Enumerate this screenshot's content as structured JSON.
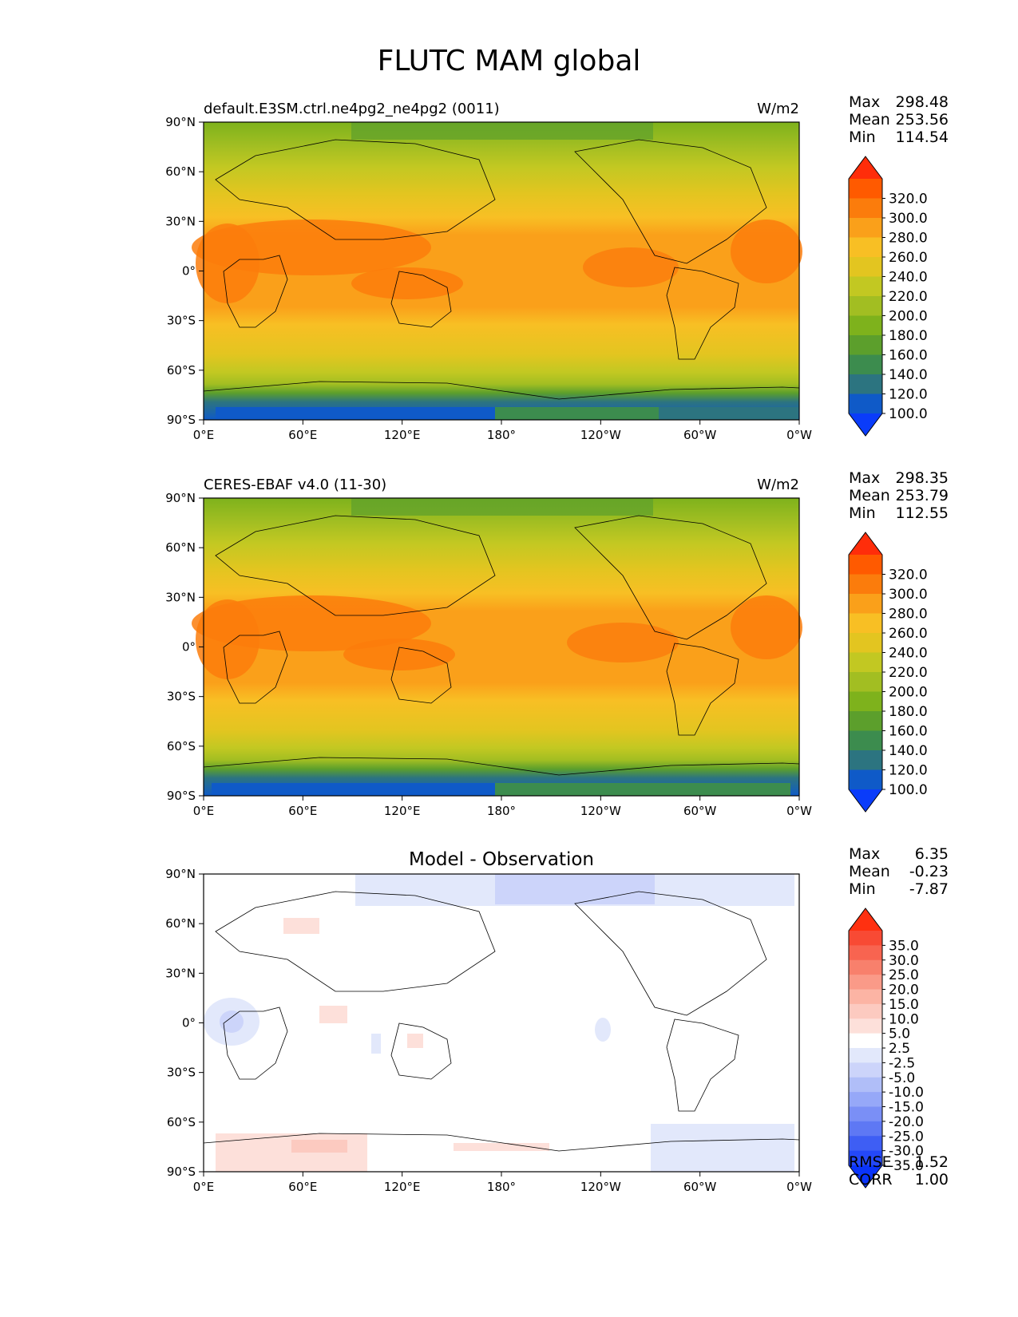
{
  "figure": {
    "title": "FLUTC MAM global"
  },
  "chart_data": [
    {
      "type": "heatmap",
      "panel": "test",
      "title_left": "default.E3SM.ctrl.ne4pg2_ne4pg2 (0011)",
      "title_center": "",
      "units": "W/m2",
      "x_ticks": [
        "0°E",
        "60°E",
        "120°E",
        "180°",
        "120°W",
        "60°W",
        "0°W"
      ],
      "y_ticks": [
        "90°N",
        "60°N",
        "30°N",
        "0°",
        "30°S",
        "60°S",
        "90°S"
      ],
      "xlim": [
        0,
        360
      ],
      "ylim": [
        -90,
        90
      ],
      "stats": {
        "max_label": "Max",
        "max": "298.48",
        "mean_label": "Mean",
        "mean": "253.56",
        "min_label": "Min",
        "min": "114.54"
      },
      "colorbar": {
        "levels": [
          "320.0",
          "300.0",
          "280.0",
          "260.0",
          "240.0",
          "220.0",
          "200.0",
          "180.0",
          "160.0",
          "140.0",
          "120.0",
          "100.0"
        ],
        "colors": [
          "#ff2d0a",
          "#ff5a00",
          "#fb7c0c",
          "#faa01a",
          "#f8bf24",
          "#e3c520",
          "#c2c822",
          "#a2be22",
          "#7eb21c",
          "#5c9f2c",
          "#3c8c4e",
          "#2c7480",
          "#0f5ac8",
          "#0a3cfa"
        ]
      }
    },
    {
      "type": "heatmap",
      "panel": "reference",
      "title_left": "CERES-EBAF v4.0 (11-30)",
      "title_center": "",
      "units": "W/m2",
      "x_ticks": [
        "0°E",
        "60°E",
        "120°E",
        "180°",
        "120°W",
        "60°W",
        "0°W"
      ],
      "y_ticks": [
        "90°N",
        "60°N",
        "30°N",
        "0°",
        "30°S",
        "60°S",
        "90°S"
      ],
      "xlim": [
        0,
        360
      ],
      "ylim": [
        -90,
        90
      ],
      "stats": {
        "max_label": "Max",
        "max": "298.35",
        "mean_label": "Mean",
        "mean": "253.79",
        "min_label": "Min",
        "min": "112.55"
      },
      "colorbar": {
        "levels": [
          "320.0",
          "300.0",
          "280.0",
          "260.0",
          "240.0",
          "220.0",
          "200.0",
          "180.0",
          "160.0",
          "140.0",
          "120.0",
          "100.0"
        ],
        "colors": [
          "#ff2d0a",
          "#ff5a00",
          "#fb7c0c",
          "#faa01a",
          "#f8bf24",
          "#e3c520",
          "#c2c822",
          "#a2be22",
          "#7eb21c",
          "#5c9f2c",
          "#3c8c4e",
          "#2c7480",
          "#0f5ac8",
          "#0a3cfa"
        ]
      }
    },
    {
      "type": "heatmap",
      "panel": "difference",
      "title_left": "",
      "title_center": "Model - Observation",
      "units": "",
      "x_ticks": [
        "0°E",
        "60°E",
        "120°E",
        "180°",
        "120°W",
        "60°W",
        "0°W"
      ],
      "y_ticks": [
        "90°N",
        "60°N",
        "30°N",
        "0°",
        "30°S",
        "60°S",
        "90°S"
      ],
      "xlim": [
        0,
        360
      ],
      "ylim": [
        -90,
        90
      ],
      "stats": {
        "max_label": "Max",
        "max": "6.35",
        "mean_label": "Mean",
        "mean": "-0.23",
        "min_label": "Min",
        "min": "-7.87",
        "rmse_label": "RMSE",
        "rmse": "1.52",
        "corr_label": "CORR",
        "corr": "1.00"
      },
      "colorbar": {
        "levels": [
          "35.0",
          "30.0",
          "25.0",
          "20.0",
          "15.0",
          "10.0",
          "5.0",
          "2.5",
          "-2.5",
          "-5.0",
          "-10.0",
          "-15.0",
          "-20.0",
          "-25.0",
          "-30.0",
          "-35.0"
        ],
        "colors": [
          "#ff3010",
          "#f84a34",
          "#f86450",
          "#f8806c",
          "#fa9a88",
          "#fcb4a4",
          "#fccac0",
          "#fde0da",
          "#ffffff",
          "#e2e8fb",
          "#ccd4fa",
          "#b0bef8",
          "#96a8f8",
          "#7a8ff6",
          "#5e78f4",
          "#3e5ef4",
          "#2448f8",
          "#0a34fa"
        ]
      }
    }
  ]
}
